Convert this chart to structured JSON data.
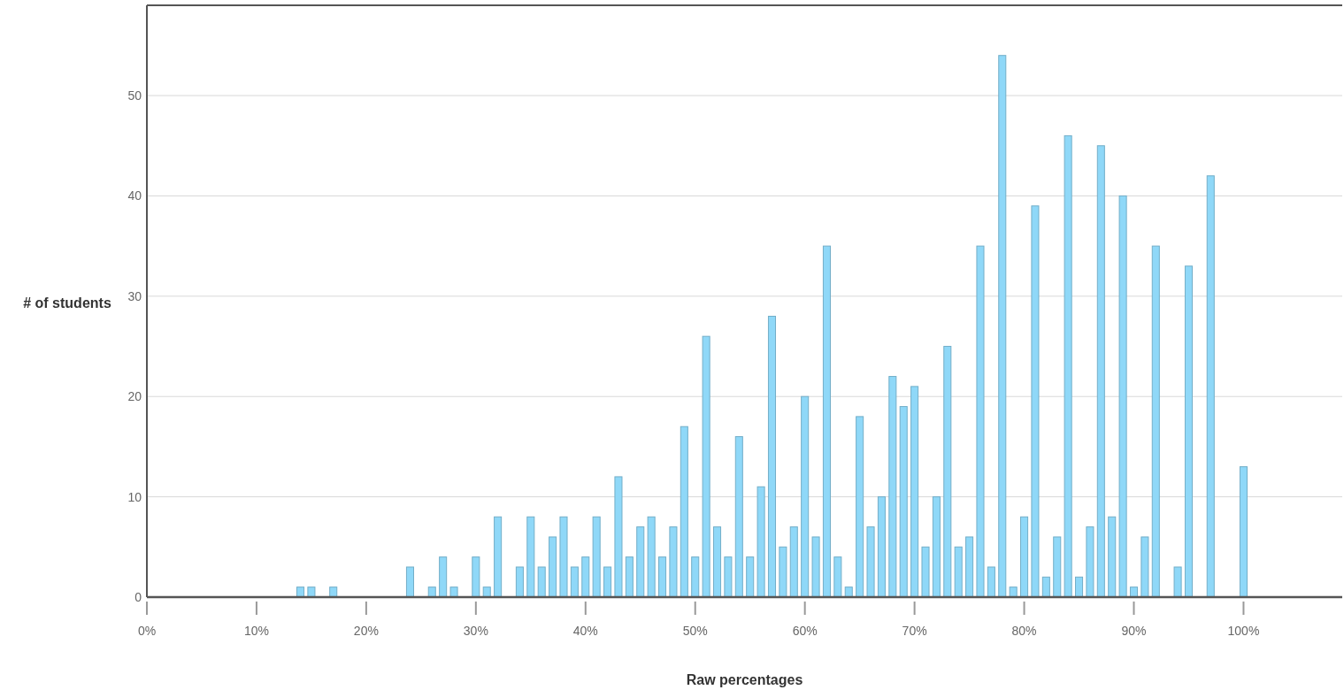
{
  "chart_data": {
    "type": "bar",
    "xlabel": "Raw percentages",
    "ylabel": "# of students",
    "x": [
      14,
      15,
      17,
      24,
      26,
      27,
      28,
      30,
      31,
      32,
      34,
      35,
      36,
      37,
      38,
      39,
      40,
      41,
      42,
      43,
      44,
      45,
      46,
      47,
      48,
      49,
      50,
      51,
      52,
      53,
      54,
      55,
      56,
      57,
      58,
      59,
      60,
      61,
      62,
      63,
      64,
      65,
      66,
      67,
      68,
      69,
      70,
      71,
      72,
      73,
      74,
      75,
      76,
      77,
      78,
      79,
      80,
      81,
      82,
      83,
      84,
      85,
      86,
      87,
      88,
      89,
      90,
      91,
      92,
      94,
      95,
      97,
      100
    ],
    "values": [
      1,
      1,
      1,
      3,
      1,
      4,
      1,
      4,
      1,
      8,
      3,
      8,
      3,
      6,
      8,
      3,
      4,
      8,
      3,
      12,
      4,
      7,
      8,
      4,
      7,
      17,
      4,
      26,
      7,
      4,
      16,
      4,
      11,
      28,
      5,
      7,
      20,
      6,
      35,
      4,
      1,
      18,
      7,
      10,
      22,
      19,
      21,
      5,
      10,
      25,
      5,
      6,
      35,
      3,
      54,
      1,
      8,
      39,
      2,
      6,
      46,
      2,
      7,
      45,
      8,
      40,
      1,
      6,
      35,
      3,
      33,
      42,
      13
    ],
    "color": "#8fd8f8",
    "xlim": [
      0,
      109
    ],
    "xticks": [
      {
        "value": 0,
        "label": "0%"
      },
      {
        "value": 10,
        "label": "10%"
      },
      {
        "value": 20,
        "label": "20%"
      },
      {
        "value": 30,
        "label": "30%"
      },
      {
        "value": 40,
        "label": "40%"
      },
      {
        "value": 50,
        "label": "50%"
      },
      {
        "value": 60,
        "label": "60%"
      },
      {
        "value": 70,
        "label": "70%"
      },
      {
        "value": 80,
        "label": "80%"
      },
      {
        "value": 90,
        "label": "90%"
      },
      {
        "value": 100,
        "label": "100%"
      }
    ],
    "ylim": [
      0,
      59
    ],
    "yticks": [
      0,
      10,
      20,
      30,
      40,
      50
    ],
    "grid": "y"
  }
}
